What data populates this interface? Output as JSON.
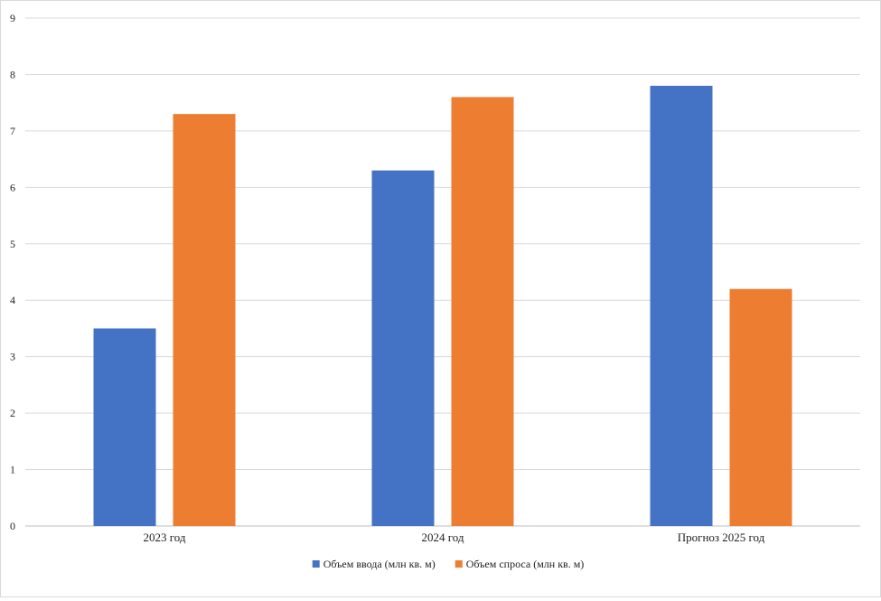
{
  "chart_data": {
    "type": "bar",
    "title": "",
    "xlabel": "",
    "ylabel": "",
    "categories": [
      "2023 год",
      "2024 год",
      "Прогноз 2025 год"
    ],
    "series": [
      {
        "name": "Объем ввода (млн кв. м)",
        "color": "#4472C4",
        "values": [
          3.5,
          6.3,
          7.8
        ]
      },
      {
        "name": "Объем спроса (млн кв. м)",
        "color": "#ED7D31",
        "values": [
          7.3,
          7.6,
          4.2
        ]
      }
    ],
    "ylim": [
      0,
      9
    ],
    "yticks": [
      0,
      1,
      2,
      3,
      4,
      5,
      6,
      7,
      8,
      9
    ],
    "grid": true,
    "legend_position": "bottom"
  }
}
